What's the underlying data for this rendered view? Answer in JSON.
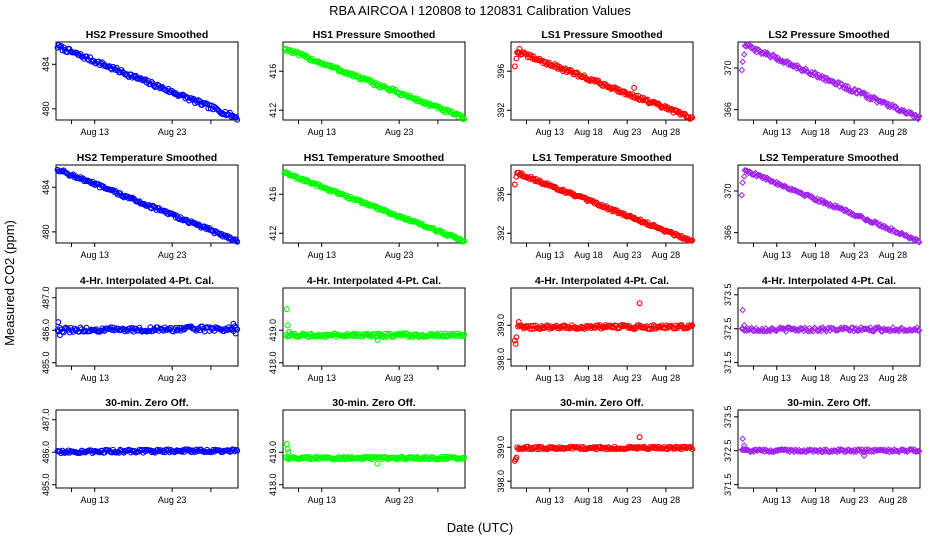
{
  "figure": {
    "title": "RBA   AIRCOA I    120808 to 120831    Calibration Values",
    "xlabel": "Date (UTC)",
    "ylabel": "Measured CO2 (ppm)"
  },
  "chart_data": [
    {
      "type": "scatter",
      "title": "HS2 Pressure Smoothed",
      "color": "#0000ff",
      "marker": "circle",
      "x_range": [
        8,
        31.5
      ],
      "xticks": [
        {
          "x": 10,
          "label": ""
        },
        {
          "x": 13,
          "label": "Aug 13"
        },
        {
          "x": 23,
          "label": "Aug 23"
        },
        {
          "x": 28,
          "label": ""
        }
      ],
      "ylim": [
        479,
        486
      ],
      "yticks": [
        {
          "v": 480,
          "label": "480"
        },
        {
          "v": 484,
          "label": "484"
        }
      ],
      "series": [
        {
          "kind": "trend",
          "x_start": 8.2,
          "x_end": 31.4,
          "y_start": 485.6,
          "y_end": 479.2,
          "noise": 0.2,
          "n": 150
        }
      ]
    },
    {
      "type": "scatter",
      "title": "HS1 Pressure Smoothed",
      "color": "#00ff00",
      "marker": "circle",
      "x_range": [
        8,
        31.5
      ],
      "xticks": [
        {
          "x": 10,
          "label": ""
        },
        {
          "x": 13,
          "label": "Aug 13"
        },
        {
          "x": 23,
          "label": "Aug 23"
        },
        {
          "x": 28,
          "label": ""
        }
      ],
      "ylim": [
        411,
        419
      ],
      "yticks": [
        {
          "v": 412,
          "label": "412"
        },
        {
          "v": 416,
          "label": "416"
        }
      ],
      "series": [
        {
          "kind": "trend",
          "x_start": 8.2,
          "x_end": 31.4,
          "y_start": 418.3,
          "y_end": 411.2,
          "noise": 0.2,
          "n": 150
        }
      ]
    },
    {
      "type": "scatter",
      "title": "LS1 Pressure Smoothed",
      "color": "#ff0000",
      "marker": "circle",
      "x_range": [
        8,
        31.5
      ],
      "xticks": [
        {
          "x": 10,
          "label": ""
        },
        {
          "x": 13,
          "label": "Aug 13"
        },
        {
          "x": 18,
          "label": "Aug 18"
        },
        {
          "x": 23,
          "label": "Aug 23"
        },
        {
          "x": 28,
          "label": "Aug 28"
        }
      ],
      "ylim": [
        391,
        399
      ],
      "yticks": [
        {
          "v": 392,
          "label": "392"
        },
        {
          "v": 396,
          "label": "396"
        }
      ],
      "series": [
        {
          "kind": "trend",
          "x_start": 8.8,
          "x_end": 31.4,
          "y_start": 398.0,
          "y_end": 391.2,
          "noise": 0.2,
          "n": 150
        },
        {
          "kind": "points",
          "x": [
            8.5,
            8.7,
            8.9,
            9.1,
            23.9
          ],
          "y": [
            396.5,
            397.3,
            397.9,
            398.3,
            394.3
          ]
        }
      ]
    },
    {
      "type": "scatter",
      "title": "LS2 Pressure Smoothed",
      "color": "#a020f0",
      "marker": "diamond",
      "x_range": [
        8,
        31.5
      ],
      "xticks": [
        {
          "x": 10,
          "label": ""
        },
        {
          "x": 13,
          "label": "Aug 13"
        },
        {
          "x": 18,
          "label": "Aug 18"
        },
        {
          "x": 23,
          "label": "Aug 23"
        },
        {
          "x": 28,
          "label": "Aug 28"
        }
      ],
      "ylim": [
        365,
        372.5
      ],
      "yticks": [
        {
          "v": 366,
          "label": "366"
        },
        {
          "v": 370,
          "label": "370"
        }
      ],
      "series": [
        {
          "kind": "trend",
          "x_start": 8.9,
          "x_end": 31.4,
          "y_start": 372.2,
          "y_end": 365.2,
          "noise": 0.2,
          "n": 150
        },
        {
          "kind": "points",
          "x": [
            8.5,
            8.6,
            8.8
          ],
          "y": [
            369.8,
            370.6,
            371.3
          ]
        }
      ]
    },
    {
      "type": "scatter",
      "title": "HS2 Temperature Smoothed",
      "color": "#0000ff",
      "marker": "circle",
      "x_range": [
        8,
        31.5
      ],
      "xticks": [
        {
          "x": 10,
          "label": ""
        },
        {
          "x": 13,
          "label": "Aug 13"
        },
        {
          "x": 23,
          "label": "Aug 23"
        },
        {
          "x": 28,
          "label": ""
        }
      ],
      "ylim": [
        479,
        486
      ],
      "yticks": [
        {
          "v": 480,
          "label": "480"
        },
        {
          "v": 484,
          "label": "484"
        }
      ],
      "series": [
        {
          "kind": "trend",
          "x_start": 8.2,
          "x_end": 31.4,
          "y_start": 485.6,
          "y_end": 479.2,
          "noise": 0.15,
          "n": 150
        }
      ]
    },
    {
      "type": "scatter",
      "title": "HS1 Temperature Smoothed",
      "color": "#00ff00",
      "marker": "circle",
      "x_range": [
        8,
        31.5
      ],
      "xticks": [
        {
          "x": 10,
          "label": ""
        },
        {
          "x": 13,
          "label": "Aug 13"
        },
        {
          "x": 23,
          "label": "Aug 23"
        },
        {
          "x": 28,
          "label": ""
        }
      ],
      "ylim": [
        411,
        419
      ],
      "yticks": [
        {
          "v": 412,
          "label": "412"
        },
        {
          "v": 416,
          "label": "416"
        }
      ],
      "series": [
        {
          "kind": "trend",
          "x_start": 8.2,
          "x_end": 31.4,
          "y_start": 418.2,
          "y_end": 411.2,
          "noise": 0.15,
          "n": 150
        }
      ]
    },
    {
      "type": "scatter",
      "title": "LS1 Temperature Smoothed",
      "color": "#ff0000",
      "marker": "circle",
      "x_range": [
        8,
        31.5
      ],
      "xticks": [
        {
          "x": 10,
          "label": ""
        },
        {
          "x": 13,
          "label": "Aug 13"
        },
        {
          "x": 18,
          "label": "Aug 18"
        },
        {
          "x": 23,
          "label": "Aug 23"
        },
        {
          "x": 28,
          "label": "Aug 28"
        }
      ],
      "ylim": [
        391,
        399
      ],
      "yticks": [
        {
          "v": 392,
          "label": "392"
        },
        {
          "v": 396,
          "label": "396"
        }
      ],
      "series": [
        {
          "kind": "trend",
          "x_start": 8.8,
          "x_end": 31.4,
          "y_start": 398.2,
          "y_end": 391.2,
          "noise": 0.15,
          "n": 150
        },
        {
          "kind": "points",
          "x": [
            8.5,
            8.7,
            8.9,
            23.9
          ],
          "y": [
            397.0,
            397.8,
            398.2,
            393.6
          ]
        }
      ]
    },
    {
      "type": "scatter",
      "title": "LS2 Temperature Smoothed",
      "color": "#a020f0",
      "marker": "diamond",
      "x_range": [
        8,
        31.5
      ],
      "xticks": [
        {
          "x": 10,
          "label": ""
        },
        {
          "x": 13,
          "label": "Aug 13"
        },
        {
          "x": 18,
          "label": "Aug 18"
        },
        {
          "x": 23,
          "label": "Aug 23"
        },
        {
          "x": 28,
          "label": "Aug 28"
        }
      ],
      "ylim": [
        365,
        372.5
      ],
      "yticks": [
        {
          "v": 366,
          "label": "366"
        },
        {
          "v": 370,
          "label": "370"
        }
      ],
      "series": [
        {
          "kind": "trend",
          "x_start": 8.9,
          "x_end": 31.4,
          "y_start": 372.0,
          "y_end": 365.2,
          "noise": 0.15,
          "n": 150
        },
        {
          "kind": "points",
          "x": [
            8.5,
            8.6,
            8.8
          ],
          "y": [
            369.6,
            370.8,
            371.4
          ]
        }
      ]
    },
    {
      "type": "scatter",
      "title": "4-Hr. Interpolated 4-Pt. Cal.",
      "color": "#0000ff",
      "marker": "circle",
      "x_range": [
        8,
        31.5
      ],
      "xticks": [
        {
          "x": 10,
          "label": ""
        },
        {
          "x": 13,
          "label": "Aug 13"
        },
        {
          "x": 23,
          "label": "Aug 23"
        },
        {
          "x": 28,
          "label": ""
        }
      ],
      "ylim": [
        484.9,
        487.3
      ],
      "yticks": [
        {
          "v": 485.0,
          "label": "485.0"
        },
        {
          "v": 486.0,
          "label": "486.0"
        },
        {
          "v": 487.0,
          "label": "487.0"
        }
      ],
      "series": [
        {
          "kind": "trend",
          "x_start": 8.2,
          "x_end": 31.4,
          "y_start": 486.0,
          "y_end": 486.05,
          "noise": 0.08,
          "n": 150
        },
        {
          "kind": "points",
          "x": [
            8.3,
            8.5,
            30.9,
            31.2
          ],
          "y": [
            486.25,
            485.85,
            486.2,
            485.9
          ]
        }
      ]
    },
    {
      "type": "scatter",
      "title": "4-Hr. Interpolated 4-Pt. Cal.",
      "color": "#00ff00",
      "marker": "circle",
      "x_range": [
        8,
        31.5
      ],
      "xticks": [
        {
          "x": 10,
          "label": ""
        },
        {
          "x": 13,
          "label": "Aug 13"
        },
        {
          "x": 23,
          "label": "Aug 23"
        },
        {
          "x": 28,
          "label": ""
        }
      ],
      "ylim": [
        417.9,
        420.3
      ],
      "yticks": [
        {
          "v": 418.0,
          "label": "418.0"
        },
        {
          "v": 419.0,
          "label": "419.0"
        }
      ],
      "series": [
        {
          "kind": "trend",
          "x_start": 8.4,
          "x_end": 31.4,
          "y_start": 418.85,
          "y_end": 418.85,
          "noise": 0.06,
          "n": 150
        },
        {
          "kind": "points",
          "x": [
            8.5,
            8.6,
            8.8,
            20.2
          ],
          "y": [
            419.65,
            419.15,
            418.95,
            418.7
          ]
        }
      ]
    },
    {
      "type": "scatter",
      "title": "4-Hr. Interpolated 4-Pt. Cal.",
      "color": "#ff0000",
      "marker": "circle",
      "x_range": [
        8,
        31.5
      ],
      "xticks": [
        {
          "x": 10,
          "label": ""
        },
        {
          "x": 13,
          "label": "Aug 13"
        },
        {
          "x": 18,
          "label": "Aug 18"
        },
        {
          "x": 23,
          "label": "Aug 23"
        },
        {
          "x": 28,
          "label": "Aug 28"
        }
      ],
      "ylim": [
        397.8,
        400.1
      ],
      "yticks": [
        {
          "v": 398.0,
          "label": "398.0"
        },
        {
          "v": 399.0,
          "label": "399.0"
        }
      ],
      "series": [
        {
          "kind": "trend",
          "x_start": 8.9,
          "x_end": 31.4,
          "y_start": 398.95,
          "y_end": 398.95,
          "noise": 0.06,
          "n": 150
        },
        {
          "kind": "points",
          "x": [
            8.5,
            8.6,
            8.7,
            9.0,
            24.6
          ],
          "y": [
            398.55,
            398.45,
            398.65,
            399.1,
            399.65
          ]
        }
      ]
    },
    {
      "type": "scatter",
      "title": "4-Hr. Interpolated 4-Pt. Cal.",
      "color": "#a020f0",
      "marker": "diamond",
      "x_range": [
        8,
        31.5
      ],
      "xticks": [
        {
          "x": 10,
          "label": ""
        },
        {
          "x": 13,
          "label": "Aug 13"
        },
        {
          "x": 18,
          "label": "Aug 18"
        },
        {
          "x": 23,
          "label": "Aug 23"
        },
        {
          "x": 28,
          "label": "Aug 28"
        }
      ],
      "ylim": [
        371.4,
        373.7
      ],
      "yticks": [
        {
          "v": 371.5,
          "label": "371.5"
        },
        {
          "v": 372.5,
          "label": "372.5"
        },
        {
          "v": 373.5,
          "label": "373.5"
        }
      ],
      "series": [
        {
          "kind": "trend",
          "x_start": 8.5,
          "x_end": 31.4,
          "y_start": 372.48,
          "y_end": 372.48,
          "noise": 0.06,
          "n": 150
        },
        {
          "kind": "points",
          "x": [
            8.6,
            8.8
          ],
          "y": [
            373.05,
            372.6
          ]
        }
      ]
    },
    {
      "type": "scatter",
      "title": "30-min. Zero Off.",
      "color": "#0000ff",
      "marker": "circle",
      "x_range": [
        8,
        31.5
      ],
      "xticks": [
        {
          "x": 10,
          "label": ""
        },
        {
          "x": 13,
          "label": "Aug 13"
        },
        {
          "x": 23,
          "label": "Aug 23"
        },
        {
          "x": 28,
          "label": ""
        }
      ],
      "ylim": [
        484.9,
        487.3
      ],
      "yticks": [
        {
          "v": 485.0,
          "label": "485.0"
        },
        {
          "v": 486.0,
          "label": "486.0"
        },
        {
          "v": 487.0,
          "label": "487.0"
        }
      ],
      "series": [
        {
          "kind": "trend",
          "x_start": 8.2,
          "x_end": 31.4,
          "y_start": 486.02,
          "y_end": 486.05,
          "noise": 0.05,
          "n": 150
        }
      ]
    },
    {
      "type": "scatter",
      "title": "30-min. Zero Off.",
      "color": "#00ff00",
      "marker": "circle",
      "x_range": [
        8,
        31.5
      ],
      "xticks": [
        {
          "x": 10,
          "label": ""
        },
        {
          "x": 13,
          "label": "Aug 13"
        },
        {
          "x": 23,
          "label": "Aug 23"
        },
        {
          "x": 28,
          "label": ""
        }
      ],
      "ylim": [
        417.9,
        420.3
      ],
      "yticks": [
        {
          "v": 418.0,
          "label": "418.0"
        },
        {
          "v": 419.0,
          "label": "419.0"
        }
      ],
      "series": [
        {
          "kind": "trend",
          "x_start": 8.4,
          "x_end": 31.4,
          "y_start": 418.82,
          "y_end": 418.82,
          "noise": 0.04,
          "n": 150
        },
        {
          "kind": "points",
          "x": [
            8.5,
            8.6,
            8.7,
            20.2
          ],
          "y": [
            419.25,
            419.1,
            419.0,
            418.65
          ]
        }
      ]
    },
    {
      "type": "scatter",
      "title": "30-min. Zero Off.",
      "color": "#ff0000",
      "marker": "circle",
      "x_range": [
        8,
        31.5
      ],
      "xticks": [
        {
          "x": 10,
          "label": ""
        },
        {
          "x": 13,
          "label": "Aug 13"
        },
        {
          "x": 18,
          "label": "Aug 18"
        },
        {
          "x": 23,
          "label": "Aug 23"
        },
        {
          "x": 28,
          "label": "Aug 28"
        }
      ],
      "ylim": [
        397.8,
        400.1
      ],
      "yticks": [
        {
          "v": 398.0,
          "label": "398.0"
        },
        {
          "v": 399.0,
          "label": "399.0"
        }
      ],
      "series": [
        {
          "kind": "trend",
          "x_start": 8.8,
          "x_end": 31.4,
          "y_start": 398.98,
          "y_end": 398.98,
          "noise": 0.04,
          "n": 150
        },
        {
          "kind": "points",
          "x": [
            8.5,
            8.6,
            8.7,
            24.6
          ],
          "y": [
            398.6,
            398.65,
            398.7,
            399.3
          ]
        }
      ]
    },
    {
      "type": "scatter",
      "title": "30-min. Zero Off.",
      "color": "#a020f0",
      "marker": "diamond",
      "x_range": [
        8,
        31.5
      ],
      "xticks": [
        {
          "x": 10,
          "label": ""
        },
        {
          "x": 13,
          "label": "Aug 13"
        },
        {
          "x": 18,
          "label": "Aug 18"
        },
        {
          "x": 23,
          "label": "Aug 23"
        },
        {
          "x": 28,
          "label": "Aug 28"
        }
      ],
      "ylim": [
        371.4,
        373.7
      ],
      "yticks": [
        {
          "v": 371.5,
          "label": "371.5"
        },
        {
          "v": 372.5,
          "label": "372.5"
        },
        {
          "v": 373.5,
          "label": "373.5"
        }
      ],
      "series": [
        {
          "kind": "trend",
          "x_start": 8.5,
          "x_end": 31.4,
          "y_start": 372.5,
          "y_end": 372.5,
          "noise": 0.04,
          "n": 150
        },
        {
          "kind": "points",
          "x": [
            8.6,
            8.8,
            24.3
          ],
          "y": [
            372.85,
            372.65,
            372.35
          ]
        }
      ]
    }
  ]
}
